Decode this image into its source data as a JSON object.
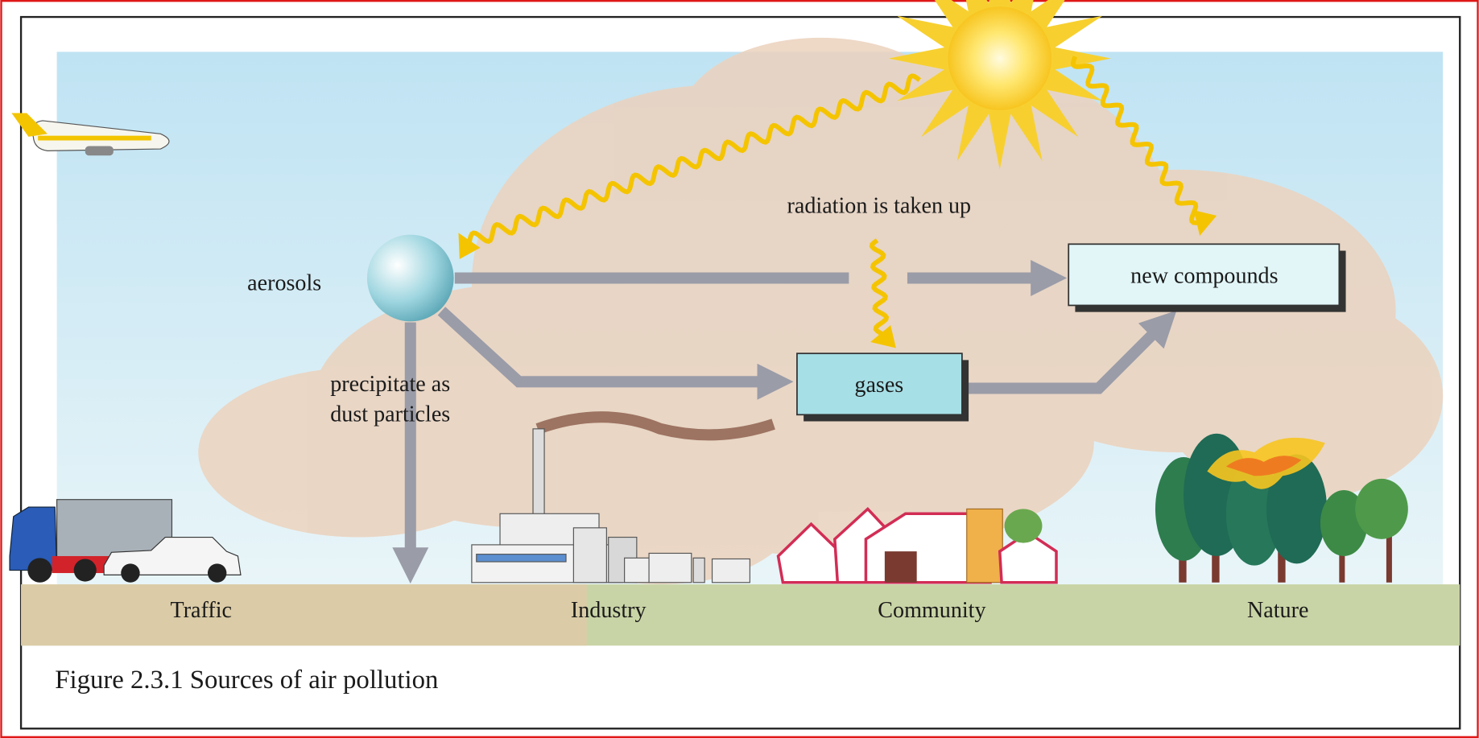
{
  "figure": {
    "caption": "Figure 2.3.1 Sources of air pollution",
    "labels": {
      "aerosols": "aerosols",
      "radiation": "radiation is taken up",
      "precipitate": [
        "precipitate as",
        "dust particles"
      ],
      "new_compounds": "new compounds",
      "gases": "gases"
    },
    "sources": [
      "Traffic",
      "Industry",
      "Community",
      "Nature"
    ]
  }
}
